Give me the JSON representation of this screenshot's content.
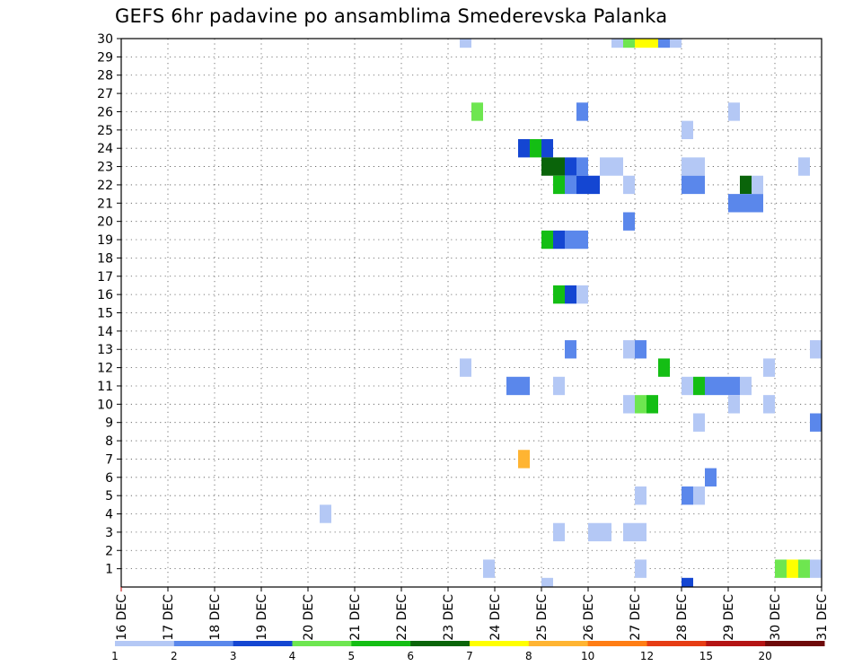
{
  "title": "GEFS 6hr padavine po ansamblima Smederevska Palanka",
  "chart_data": {
    "type": "heatmap",
    "title": "GEFS 6hr padavine po ansamblima Smederevska Palanka",
    "xlabel": "",
    "ylabel": "",
    "x_tick_labels": [
      "16 DEC",
      "17 DEC",
      "18 DEC",
      "19 DEC",
      "20 DEC",
      "21 DEC",
      "22 DEC",
      "23 DEC",
      "24 DEC",
      "25 DEC",
      "26 DEC",
      "27 DEC",
      "28 DEC",
      "29 DEC",
      "30 DEC",
      "31 DEC"
    ],
    "x_range": [
      "16 DEC 00Z",
      "31 DEC 00Z"
    ],
    "x_step_hours": 6,
    "y_tick_labels": [
      "1",
      "2",
      "3",
      "4",
      "5",
      "6",
      "7",
      "8",
      "9",
      "10",
      "11",
      "12",
      "13",
      "14",
      "15",
      "16",
      "17",
      "18",
      "19",
      "20",
      "21",
      "22",
      "23",
      "24",
      "25",
      "26",
      "27",
      "28",
      "29",
      "30"
    ],
    "y_range": [
      0,
      30
    ],
    "grid": true,
    "colorbar": {
      "placement": "bottom",
      "tick_labels": [
        "1",
        "2",
        "3",
        "4",
        "5",
        "6",
        "7",
        "8",
        "10",
        "12",
        "15",
        "20"
      ],
      "bins": [
        {
          "from": 1,
          "to": 2,
          "color": "#b4c8f5"
        },
        {
          "from": 2,
          "to": 3,
          "color": "#5a87eb"
        },
        {
          "from": 3,
          "to": 4,
          "color": "#1446d2"
        },
        {
          "from": 4,
          "to": 5,
          "color": "#6ee650"
        },
        {
          "from": 5,
          "to": 6,
          "color": "#14be14"
        },
        {
          "from": 6,
          "to": 7,
          "color": "#0a640a"
        },
        {
          "from": 7,
          "to": 8,
          "color": "#ffff00"
        },
        {
          "from": 8,
          "to": 10,
          "color": "#ffb432"
        },
        {
          "from": 10,
          "to": 12,
          "color": "#ff7d14"
        },
        {
          "from": 12,
          "to": 15,
          "color": "#e63c14"
        },
        {
          "from": 15,
          "to": 20,
          "color": "#b41414"
        },
        {
          "from": 20,
          "to": 30,
          "color": "#6e0a0a"
        }
      ]
    },
    "cells_note": "member, time step index (6-hourly steps after 16 DEC 00Z), precipitation bin (mm)",
    "cells": [
      {
        "member": 30,
        "step": 30,
        "bin": 1
      },
      {
        "member": 30,
        "step": 43,
        "bin": 1
      },
      {
        "member": 30,
        "step": 44,
        "bin": 4
      },
      {
        "member": 30,
        "step": 45,
        "bin": 7
      },
      {
        "member": 30,
        "step": 46,
        "bin": 7
      },
      {
        "member": 30,
        "step": 47,
        "bin": 2
      },
      {
        "member": 30,
        "step": 48,
        "bin": 1
      },
      {
        "member": 26,
        "step": 31,
        "bin": 4
      },
      {
        "member": 26,
        "step": 40,
        "bin": 2
      },
      {
        "member": 26,
        "step": 53,
        "bin": 1
      },
      {
        "member": 25,
        "step": 49,
        "bin": 1
      },
      {
        "member": 24,
        "step": 35,
        "bin": 3
      },
      {
        "member": 24,
        "step": 36,
        "bin": 5
      },
      {
        "member": 24,
        "step": 37,
        "bin": 3
      },
      {
        "member": 23,
        "step": 37,
        "bin": 6
      },
      {
        "member": 23,
        "step": 38,
        "bin": 6
      },
      {
        "member": 23,
        "step": 39,
        "bin": 3
      },
      {
        "member": 23,
        "step": 40,
        "bin": 2
      },
      {
        "member": 23,
        "step": 42,
        "bin": 1
      },
      {
        "member": 23,
        "step": 43,
        "bin": 1
      },
      {
        "member": 23,
        "step": 49,
        "bin": 1
      },
      {
        "member": 23,
        "step": 50,
        "bin": 1
      },
      {
        "member": 23,
        "step": 59,
        "bin": 1
      },
      {
        "member": 22,
        "step": 38,
        "bin": 5
      },
      {
        "member": 22,
        "step": 39,
        "bin": 2
      },
      {
        "member": 22,
        "step": 40,
        "bin": 3
      },
      {
        "member": 22,
        "step": 41,
        "bin": 3
      },
      {
        "member": 22,
        "step": 44,
        "bin": 1
      },
      {
        "member": 22,
        "step": 49,
        "bin": 2
      },
      {
        "member": 22,
        "step": 50,
        "bin": 2
      },
      {
        "member": 22,
        "step": 54,
        "bin": 6
      },
      {
        "member": 22,
        "step": 55,
        "bin": 1
      },
      {
        "member": 21,
        "step": 53,
        "bin": 2
      },
      {
        "member": 21,
        "step": 54,
        "bin": 2
      },
      {
        "member": 21,
        "step": 55,
        "bin": 2
      },
      {
        "member": 20,
        "step": 44,
        "bin": 2
      },
      {
        "member": 19,
        "step": 37,
        "bin": 5
      },
      {
        "member": 19,
        "step": 38,
        "bin": 3
      },
      {
        "member": 19,
        "step": 39,
        "bin": 2
      },
      {
        "member": 19,
        "step": 40,
        "bin": 2
      },
      {
        "member": 16,
        "step": 38,
        "bin": 5
      },
      {
        "member": 16,
        "step": 39,
        "bin": 3
      },
      {
        "member": 16,
        "step": 40,
        "bin": 1
      },
      {
        "member": 13,
        "step": 39,
        "bin": 2
      },
      {
        "member": 13,
        "step": 44,
        "bin": 1
      },
      {
        "member": 13,
        "step": 45,
        "bin": 2
      },
      {
        "member": 13,
        "step": 60,
        "bin": 1
      },
      {
        "member": 12,
        "step": 30,
        "bin": 1
      },
      {
        "member": 12,
        "step": 47,
        "bin": 5
      },
      {
        "member": 12,
        "step": 56,
        "bin": 1
      },
      {
        "member": 11,
        "step": 34,
        "bin": 2
      },
      {
        "member": 11,
        "step": 35,
        "bin": 2
      },
      {
        "member": 11,
        "step": 38,
        "bin": 1
      },
      {
        "member": 11,
        "step": 49,
        "bin": 1
      },
      {
        "member": 11,
        "step": 50,
        "bin": 5
      },
      {
        "member": 11,
        "step": 51,
        "bin": 2
      },
      {
        "member": 11,
        "step": 52,
        "bin": 2
      },
      {
        "member": 11,
        "step": 53,
        "bin": 2
      },
      {
        "member": 11,
        "step": 54,
        "bin": 1
      },
      {
        "member": 10,
        "step": 44,
        "bin": 1
      },
      {
        "member": 10,
        "step": 45,
        "bin": 4
      },
      {
        "member": 10,
        "step": 46,
        "bin": 5
      },
      {
        "member": 10,
        "step": 53,
        "bin": 1
      },
      {
        "member": 10,
        "step": 56,
        "bin": 1
      },
      {
        "member": 9,
        "step": 50,
        "bin": 1
      },
      {
        "member": 9,
        "step": 60,
        "bin": 2
      },
      {
        "member": 7,
        "step": 35,
        "bin": 8
      },
      {
        "member": 6,
        "step": 51,
        "bin": 2
      },
      {
        "member": 5,
        "step": 45,
        "bin": 1
      },
      {
        "member": 5,
        "step": 49,
        "bin": 2
      },
      {
        "member": 5,
        "step": 50,
        "bin": 1
      },
      {
        "member": 4,
        "step": 18,
        "bin": 1
      },
      {
        "member": 3,
        "step": 38,
        "bin": 1
      },
      {
        "member": 3,
        "step": 41,
        "bin": 1
      },
      {
        "member": 3,
        "step": 42,
        "bin": 1
      },
      {
        "member": 3,
        "step": 44,
        "bin": 1
      },
      {
        "member": 3,
        "step": 45,
        "bin": 1
      },
      {
        "member": 1,
        "step": 32,
        "bin": 1
      },
      {
        "member": 1,
        "step": 45,
        "bin": 1
      },
      {
        "member": 1,
        "step": 57,
        "bin": 4
      },
      {
        "member": 1,
        "step": 58,
        "bin": 7
      },
      {
        "member": 1,
        "step": 59,
        "bin": 4
      },
      {
        "member": 1,
        "step": 60,
        "bin": 1
      },
      {
        "member": 0,
        "step": 37,
        "bin": 1
      },
      {
        "member": 0,
        "step": 49,
        "bin": 3
      }
    ]
  }
}
